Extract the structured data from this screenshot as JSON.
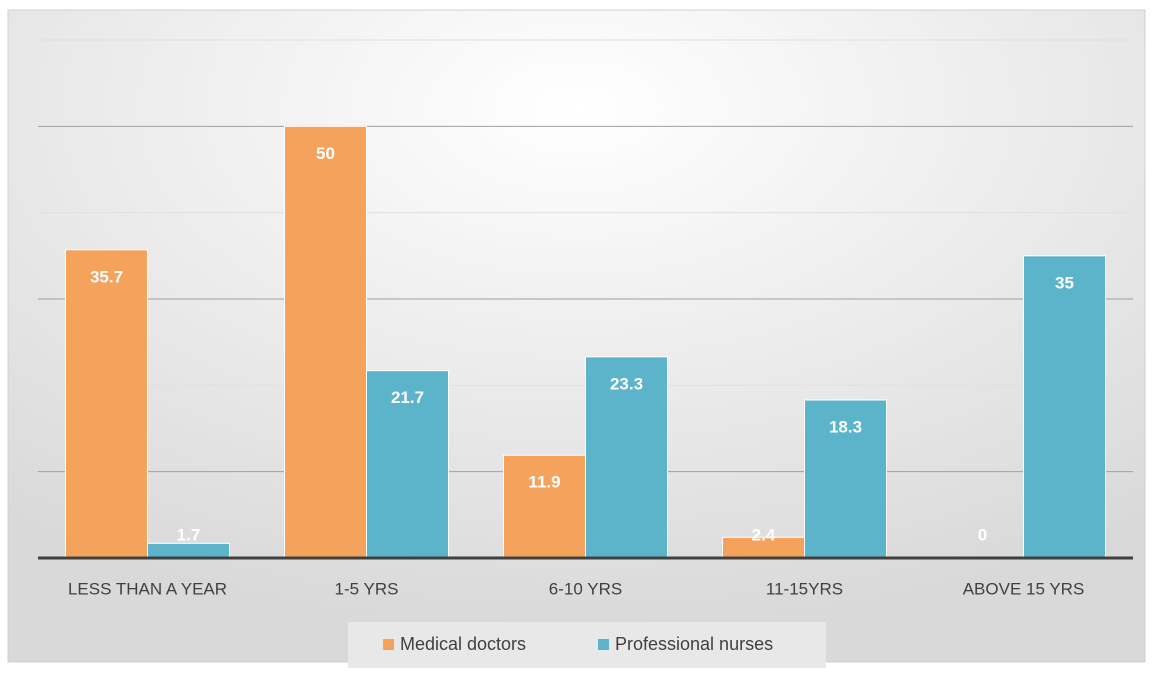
{
  "chart_data": {
    "type": "bar",
    "categories": [
      "LESS THAN A YEAR",
      "1-5 YRS",
      "6-10 YRS",
      "11-15YRS",
      "ABOVE 15 YRS"
    ],
    "series": [
      {
        "name": "Medical doctors",
        "color": "#f5a35c",
        "values": [
          35.7,
          50,
          11.9,
          2.4,
          0
        ]
      },
      {
        "name": "Professional nurses",
        "color": "#5bb4c9",
        "values": [
          1.7,
          21.7,
          23.3,
          18.3,
          35
        ]
      }
    ],
    "ylim": [
      0,
      60
    ],
    "yticks": [
      0,
      10,
      20,
      30,
      40,
      50,
      60
    ],
    "grid": true,
    "legend": "bottom"
  }
}
